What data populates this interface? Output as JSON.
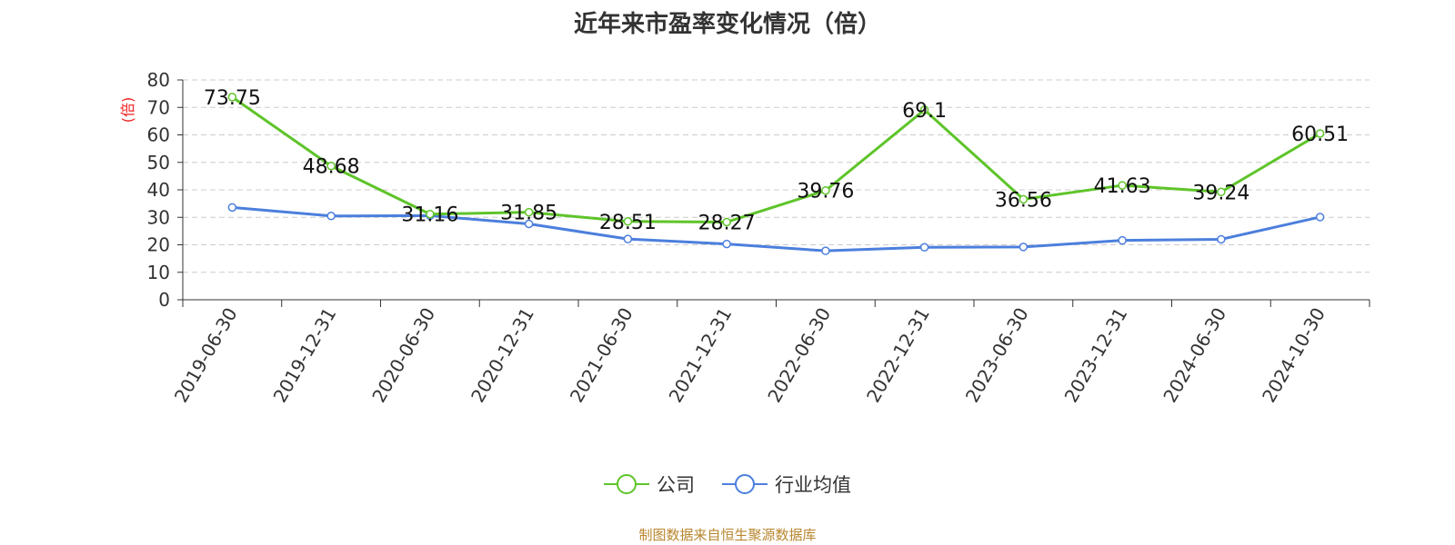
{
  "chart_data": {
    "type": "line",
    "title": "近年来市盈率变化情况（倍）",
    "ylabel": "(倍)",
    "ylim": [
      0,
      80
    ],
    "yticks": [
      0,
      10,
      20,
      30,
      40,
      50,
      60,
      70,
      80
    ],
    "grid": true,
    "legend_position": "bottom-center",
    "categories": [
      "2019-06-30",
      "2019-12-31",
      "2020-06-30",
      "2020-12-31",
      "2021-06-30",
      "2021-12-31",
      "2022-06-30",
      "2022-12-31",
      "2023-06-30",
      "2023-12-31",
      "2024-06-30",
      "2024-10-30"
    ],
    "series": [
      {
        "name": "公司",
        "color": "#5ec429",
        "values": [
          73.75,
          48.68,
          31.16,
          31.85,
          28.51,
          28.27,
          39.76,
          69.1,
          36.56,
          41.63,
          39.24,
          60.51
        ],
        "labels": [
          "73.75",
          "48.68",
          "31.16",
          "31.85",
          "28.51",
          "28.27",
          "39.76",
          "69.1",
          "36.56",
          "41.63",
          "39.24",
          "60.51"
        ]
      },
      {
        "name": "行业均值",
        "color": "#4c7fdd",
        "values": [
          33.6,
          30.5,
          30.6,
          27.6,
          22.1,
          20.3,
          17.8,
          19.1,
          19.2,
          21.6,
          22.0,
          30.1
        ]
      }
    ],
    "source": "制图数据来自恒生聚源数据库"
  }
}
